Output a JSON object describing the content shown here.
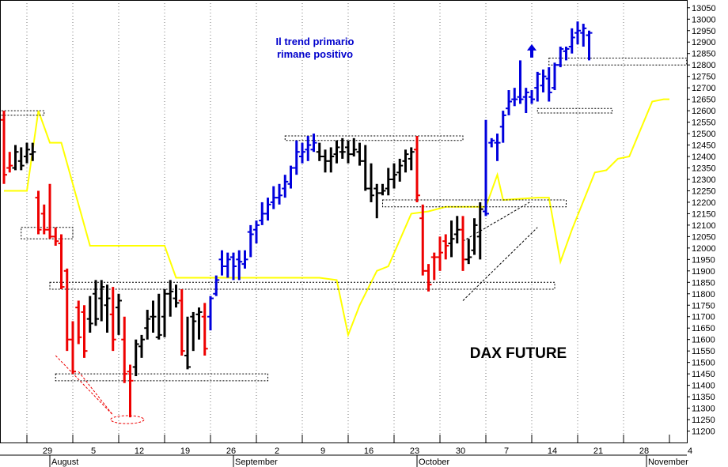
{
  "chart_data": {
    "type": "ohlc",
    "title": "DAX FUTURE",
    "annotation": "Il trend primario\nrimane positivo",
    "ylim": [
      11150,
      13070
    ],
    "y_ticks": [
      11200,
      11250,
      11300,
      11350,
      11400,
      11450,
      11500,
      11550,
      11600,
      11650,
      11700,
      11750,
      11800,
      11850,
      11900,
      11950,
      12000,
      12050,
      12100,
      12150,
      12200,
      12250,
      12300,
      12350,
      12400,
      12450,
      12500,
      12550,
      12600,
      12650,
      12700,
      12750,
      12800,
      12850,
      12900,
      12950,
      13000,
      13050
    ],
    "x_day_labels": [
      "29",
      "5",
      "12",
      "19",
      "26",
      "2",
      "9",
      "16",
      "23",
      "30",
      "7",
      "14",
      "21",
      "28",
      "4"
    ],
    "x_month_labels": [
      "August",
      "September",
      "October",
      "November"
    ],
    "colors": {
      "up": "#0000dd",
      "down": "#ee0000",
      "neutral": "#000000",
      "ma": "#ffff00",
      "annotation": "#0000cc",
      "grid": "#777777"
    },
    "bars": [
      {
        "c": "red",
        "o": 12560,
        "h": 12600,
        "l": 12280,
        "cl": 12320
      },
      {
        "c": "red",
        "o": 12350,
        "h": 12420,
        "l": 12330,
        "cl": 12360
      },
      {
        "c": "black",
        "o": 12350,
        "h": 12450,
        "l": 12340,
        "cl": 12420
      },
      {
        "c": "black",
        "o": 12380,
        "h": 12440,
        "l": 12340,
        "cl": 12360
      },
      {
        "c": "black",
        "o": 12400,
        "h": 12460,
        "l": 12370,
        "cl": 12430
      },
      {
        "c": "black",
        "o": 12410,
        "h": 12460,
        "l": 12380,
        "cl": 12420
      },
      {
        "c": "red",
        "o": 12220,
        "h": 12250,
        "l": 12060,
        "cl": 12080
      },
      {
        "c": "red",
        "o": 12150,
        "h": 12190,
        "l": 12060,
        "cl": 12080
      },
      {
        "c": "red",
        "o": 12080,
        "h": 12280,
        "l": 12040,
        "cl": 12050
      },
      {
        "c": "red",
        "o": 12050,
        "h": 12090,
        "l": 12010,
        "cl": 12030
      },
      {
        "c": "red",
        "o": 12020,
        "h": 12060,
        "l": 11820,
        "cl": 11830
      },
      {
        "c": "red",
        "o": 11900,
        "h": 11910,
        "l": 11550,
        "cl": 11600
      },
      {
        "c": "red",
        "o": 11600,
        "h": 11680,
        "l": 11450,
        "cl": 11460
      },
      {
        "c": "red",
        "o": 11740,
        "h": 11770,
        "l": 11580,
        "cl": 11610
      },
      {
        "c": "red",
        "o": 11720,
        "h": 11750,
        "l": 11520,
        "cl": 11550
      },
      {
        "c": "black",
        "o": 11690,
        "h": 11790,
        "l": 11630,
        "cl": 11670
      },
      {
        "c": "black",
        "o": 11800,
        "h": 11860,
        "l": 11660,
        "cl": 11690
      },
      {
        "c": "black",
        "o": 11780,
        "h": 11860,
        "l": 11680,
        "cl": 11830
      },
      {
        "c": "black",
        "o": 11750,
        "h": 11840,
        "l": 11630,
        "cl": 11780
      },
      {
        "c": "red",
        "o": 11710,
        "h": 11830,
        "l": 11550,
        "cl": 11600
      },
      {
        "c": "black",
        "o": 11740,
        "h": 11800,
        "l": 11620,
        "cl": 11770
      },
      {
        "c": "red",
        "o": 11600,
        "h": 11700,
        "l": 11410,
        "cl": 11450
      },
      {
        "c": "red",
        "o": 11460,
        "h": 11490,
        "l": 11260,
        "cl": 11420
      },
      {
        "c": "black",
        "o": 11480,
        "h": 11600,
        "l": 11440,
        "cl": 11580
      },
      {
        "c": "black",
        "o": 11570,
        "h": 11620,
        "l": 11520,
        "cl": 11600
      },
      {
        "c": "black",
        "o": 11650,
        "h": 11730,
        "l": 11600,
        "cl": 11690
      },
      {
        "c": "black",
        "o": 11700,
        "h": 11770,
        "l": 11630,
        "cl": 11700
      },
      {
        "c": "black",
        "o": 11610,
        "h": 11800,
        "l": 11600,
        "cl": 11620
      },
      {
        "c": "black",
        "o": 11700,
        "h": 11820,
        "l": 11610,
        "cl": 11800
      },
      {
        "c": "black",
        "o": 11800,
        "h": 11860,
        "l": 11700,
        "cl": 11810
      },
      {
        "c": "black",
        "o": 11780,
        "h": 11840,
        "l": 11740,
        "cl": 11760
      },
      {
        "c": "red",
        "o": 11770,
        "h": 11820,
        "l": 11530,
        "cl": 11550
      },
      {
        "c": "black",
        "o": 11530,
        "h": 11700,
        "l": 11470,
        "cl": 11480
      },
      {
        "c": "black",
        "o": 11700,
        "h": 11720,
        "l": 11550,
        "cl": 11680
      },
      {
        "c": "black",
        "o": 11710,
        "h": 11740,
        "l": 11600,
        "cl": 11720
      },
      {
        "c": "red",
        "o": 11700,
        "h": 11760,
        "l": 11530,
        "cl": 11560
      },
      {
        "c": "blue",
        "o": 11700,
        "h": 11790,
        "l": 11640,
        "cl": 11780
      },
      {
        "c": "blue",
        "o": 11800,
        "h": 11880,
        "l": 11790,
        "cl": 11860
      },
      {
        "c": "blue",
        "o": 11950,
        "h": 11990,
        "l": 11880,
        "cl": 11920
      },
      {
        "c": "blue",
        "o": 11920,
        "h": 11980,
        "l": 11870,
        "cl": 11950
      },
      {
        "c": "blue",
        "o": 11960,
        "h": 11980,
        "l": 11860,
        "cl": 11920
      },
      {
        "c": "blue",
        "o": 11950,
        "h": 11990,
        "l": 11860,
        "cl": 11940
      },
      {
        "c": "blue",
        "o": 11930,
        "h": 11990,
        "l": 11910,
        "cl": 11950
      },
      {
        "c": "blue",
        "o": 12070,
        "h": 12100,
        "l": 11960,
        "cl": 12060
      },
      {
        "c": "blue",
        "o": 12080,
        "h": 12120,
        "l": 12020,
        "cl": 12100
      },
      {
        "c": "blue",
        "o": 12120,
        "h": 12200,
        "l": 12100,
        "cl": 12150
      },
      {
        "c": "blue",
        "o": 12150,
        "h": 12220,
        "l": 12120,
        "cl": 12190
      },
      {
        "c": "blue",
        "o": 12200,
        "h": 12270,
        "l": 12170,
        "cl": 12220
      },
      {
        "c": "blue",
        "o": 12220,
        "h": 12280,
        "l": 12190,
        "cl": 12230
      },
      {
        "c": "blue",
        "o": 12260,
        "h": 12320,
        "l": 12220,
        "cl": 12290
      },
      {
        "c": "blue",
        "o": 12280,
        "h": 12360,
        "l": 12260,
        "cl": 12350
      },
      {
        "c": "blue",
        "o": 12350,
        "h": 12470,
        "l": 12320,
        "cl": 12420
      },
      {
        "c": "blue",
        "o": 12400,
        "h": 12460,
        "l": 12370,
        "cl": 12420
      },
      {
        "c": "blue",
        "o": 12430,
        "h": 12490,
        "l": 12380,
        "cl": 12450
      },
      {
        "c": "blue",
        "o": 12430,
        "h": 12500,
        "l": 12420,
        "cl": 12460
      },
      {
        "c": "black",
        "o": 12420,
        "h": 12460,
        "l": 12380,
        "cl": 12400
      },
      {
        "c": "black",
        "o": 12400,
        "h": 12430,
        "l": 12330,
        "cl": 12380
      },
      {
        "c": "black",
        "o": 12380,
        "h": 12440,
        "l": 12330,
        "cl": 12400
      },
      {
        "c": "black",
        "o": 12410,
        "h": 12470,
        "l": 12370,
        "cl": 12440
      },
      {
        "c": "black",
        "o": 12420,
        "h": 12480,
        "l": 12390,
        "cl": 12420
      },
      {
        "c": "black",
        "o": 12440,
        "h": 12470,
        "l": 12370,
        "cl": 12410
      },
      {
        "c": "black",
        "o": 12410,
        "h": 12480,
        "l": 12400,
        "cl": 12430
      },
      {
        "c": "black",
        "o": 12420,
        "h": 12460,
        "l": 12360,
        "cl": 12380
      },
      {
        "c": "black",
        "o": 12380,
        "h": 12450,
        "l": 12250,
        "cl": 12260
      },
      {
        "c": "black",
        "o": 12260,
        "h": 12370,
        "l": 12200,
        "cl": 12230
      },
      {
        "c": "black",
        "o": 12260,
        "h": 12280,
        "l": 12130,
        "cl": 12240
      },
      {
        "c": "black",
        "o": 12240,
        "h": 12280,
        "l": 12230,
        "cl": 12250
      },
      {
        "c": "black",
        "o": 12260,
        "h": 12350,
        "l": 12230,
        "cl": 12300
      },
      {
        "c": "black",
        "o": 12300,
        "h": 12370,
        "l": 12260,
        "cl": 12320
      },
      {
        "c": "black",
        "o": 12330,
        "h": 12390,
        "l": 12290,
        "cl": 12360
      },
      {
        "c": "black",
        "o": 12380,
        "h": 12430,
        "l": 12330,
        "cl": 12410
      },
      {
        "c": "black",
        "o": 12390,
        "h": 12440,
        "l": 12340,
        "cl": 12420
      },
      {
        "c": "red",
        "o": 12430,
        "h": 12490,
        "l": 12200,
        "cl": 12230
      },
      {
        "c": "red",
        "o": 12130,
        "h": 12190,
        "l": 11880,
        "cl": 11900
      },
      {
        "c": "red",
        "o": 11900,
        "h": 11930,
        "l": 11810,
        "cl": 11840
      },
      {
        "c": "red",
        "o": 11960,
        "h": 11980,
        "l": 11860,
        "cl": 11960
      },
      {
        "c": "red",
        "o": 11960,
        "h": 12050,
        "l": 11900,
        "cl": 11980
      },
      {
        "c": "red",
        "o": 12030,
        "h": 12060,
        "l": 11950,
        "cl": 12010
      },
      {
        "c": "black",
        "o": 12020,
        "h": 12120,
        "l": 11960,
        "cl": 12040
      },
      {
        "c": "black",
        "o": 12060,
        "h": 12140,
        "l": 12020,
        "cl": 12080
      },
      {
        "c": "red",
        "o": 12080,
        "h": 12140,
        "l": 11900,
        "cl": 11950
      },
      {
        "c": "black",
        "o": 11950,
        "h": 12040,
        "l": 11930,
        "cl": 11960
      },
      {
        "c": "black",
        "o": 11990,
        "h": 12130,
        "l": 11970,
        "cl": 12100
      },
      {
        "c": "black",
        "o": 12050,
        "h": 12200,
        "l": 11950,
        "cl": 12170
      },
      {
        "c": "blue",
        "o": 12160,
        "h": 12560,
        "l": 12140,
        "cl": 12150
      },
      {
        "c": "blue",
        "o": 12460,
        "h": 12480,
        "l": 12440,
        "cl": 12470
      },
      {
        "c": "blue",
        "o": 12460,
        "h": 12500,
        "l": 12380,
        "cl": 12460
      },
      {
        "c": "blue",
        "o": 12530,
        "h": 12600,
        "l": 12460,
        "cl": 12580
      },
      {
        "c": "blue",
        "o": 12610,
        "h": 12690,
        "l": 12580,
        "cl": 12640
      },
      {
        "c": "blue",
        "o": 12650,
        "h": 12700,
        "l": 12620,
        "cl": 12650
      },
      {
        "c": "blue",
        "o": 12660,
        "h": 12820,
        "l": 12630,
        "cl": 12650
      },
      {
        "c": "blue",
        "o": 12660,
        "h": 12700,
        "l": 12590,
        "cl": 12680
      },
      {
        "c": "blue",
        "o": 12660,
        "h": 12690,
        "l": 12630,
        "cl": 12650
      },
      {
        "c": "blue",
        "o": 12700,
        "h": 12770,
        "l": 12640,
        "cl": 12760
      },
      {
        "c": "blue",
        "o": 12710,
        "h": 12780,
        "l": 12680,
        "cl": 12750
      },
      {
        "c": "blue",
        "o": 12740,
        "h": 12790,
        "l": 12640,
        "cl": 12680
      },
      {
        "c": "blue",
        "o": 12700,
        "h": 12810,
        "l": 12690,
        "cl": 12800
      },
      {
        "c": "blue",
        "o": 12800,
        "h": 12880,
        "l": 12790,
        "cl": 12870
      },
      {
        "c": "blue",
        "o": 12860,
        "h": 12880,
        "l": 12820,
        "cl": 12870
      },
      {
        "c": "blue",
        "o": 12880,
        "h": 12960,
        "l": 12850,
        "cl": 12920
      },
      {
        "c": "blue",
        "o": 12940,
        "h": 12990,
        "l": 12890,
        "cl": 12950
      },
      {
        "c": "blue",
        "o": 12940,
        "h": 12980,
        "l": 12880,
        "cl": 12960
      },
      {
        "c": "blue",
        "o": 12930,
        "h": 12950,
        "l": 12820,
        "cl": 12940
      }
    ],
    "ma_line": [
      [
        0,
        12250
      ],
      [
        4,
        12250
      ],
      [
        6,
        12600
      ],
      [
        8,
        12460
      ],
      [
        10,
        12460
      ],
      [
        15,
        12010
      ],
      [
        28,
        12010
      ],
      [
        30,
        11870
      ],
      [
        55,
        11870
      ],
      [
        58,
        11860
      ],
      [
        60,
        11620
      ],
      [
        62,
        11750
      ],
      [
        65,
        11900
      ],
      [
        67,
        11920
      ],
      [
        71,
        12150
      ],
      [
        74,
        12160
      ],
      [
        77,
        12180
      ],
      [
        83,
        12180
      ],
      [
        84,
        12180
      ],
      [
        86,
        12320
      ],
      [
        87,
        12210
      ],
      [
        93,
        12220
      ],
      [
        95,
        12220
      ],
      [
        97,
        11940
      ],
      [
        99,
        12080
      ],
      [
        103,
        12330
      ],
      [
        105,
        12340
      ],
      [
        107,
        12390
      ],
      [
        109,
        12400
      ],
      [
        111,
        12520
      ],
      [
        113,
        12640
      ],
      [
        115,
        12650
      ],
      [
        116,
        12650
      ]
    ],
    "zones": [
      {
        "x0": -1,
        "x1": 7,
        "y0": 12580,
        "y1": 12600
      },
      {
        "x0": 3,
        "x1": 12,
        "y0": 12040,
        "y1": 12090
      },
      {
        "x0": 8,
        "x1": 96,
        "y0": 11820,
        "y1": 11850
      },
      {
        "x0": 9,
        "x1": 46,
        "y0": 11420,
        "y1": 11450
      },
      {
        "x0": 49,
        "x1": 80,
        "y0": 12470,
        "y1": 12490
      },
      {
        "x0": 66,
        "x1": 98,
        "y0": 12180,
        "y1": 12210
      },
      {
        "x0": 93,
        "x1": 106,
        "y0": 12590,
        "y1": 12610
      },
      {
        "x0": 95,
        "x1": 119,
        "y0": 12800,
        "y1": 12830
      }
    ],
    "wedge": {
      "x0": 80,
      "x1": 93,
      "low0": 11770,
      "low1": 12090,
      "high0": 12030,
      "high1": 12200
    },
    "down_guides": [
      [
        9,
        11530,
        19,
        11270
      ],
      [
        13,
        11460,
        19,
        11270
      ]
    ],
    "low_ellipse": {
      "x": 21.5,
      "y": 11250
    },
    "up_arrow": {
      "x": 92,
      "y": 12860
    }
  }
}
